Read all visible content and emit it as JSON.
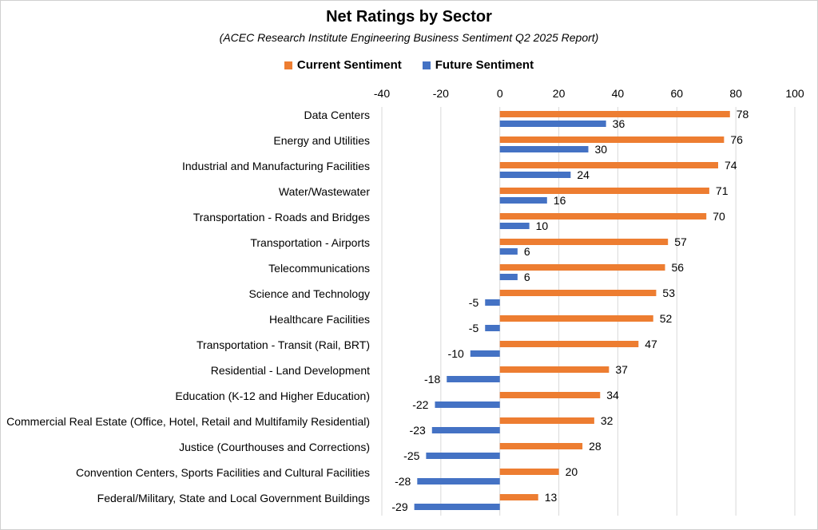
{
  "chart_data": {
    "type": "bar",
    "orientation": "horizontal",
    "title": "Net Ratings by Sector",
    "subtitle": "(ACEC Research Institute Engineering Business Sentiment Q2 2025 Report)",
    "xlim": [
      -40,
      100
    ],
    "xticks": [
      "-40",
      "-20",
      "0",
      "20",
      "40",
      "60",
      "80",
      "100"
    ],
    "grid": true,
    "legend_position": "top",
    "categories": [
      "Data Centers",
      "Energy and Utilities",
      "Industrial and Manufacturing Facilities",
      "Water/Wastewater",
      "Transportation - Roads and Bridges",
      "Transportation - Airports",
      "Telecommunications",
      "Science and Technology",
      "Healthcare Facilities",
      "Transportation - Transit (Rail, BRT)",
      "Residential - Land Development",
      "Education (K-12 and Higher Education)",
      "Commercial Real Estate (Office, Hotel, Retail and Multifamily Residential)",
      "Justice (Courthouses and Corrections)",
      "Convention Centers, Sports Facilities and Cultural Facilities",
      "Federal/Military, State and Local Government Buildings"
    ],
    "series": [
      {
        "name": "Current Sentiment",
        "color": "#ED7D31",
        "values": [
          78,
          76,
          74,
          71,
          70,
          57,
          56,
          53,
          52,
          47,
          37,
          34,
          32,
          28,
          20,
          13
        ]
      },
      {
        "name": "Future Sentiment",
        "color": "#4472C4",
        "values": [
          36,
          30,
          24,
          16,
          10,
          6,
          6,
          -5,
          -5,
          -10,
          -18,
          -22,
          -23,
          -25,
          -28,
          -29
        ]
      }
    ]
  }
}
